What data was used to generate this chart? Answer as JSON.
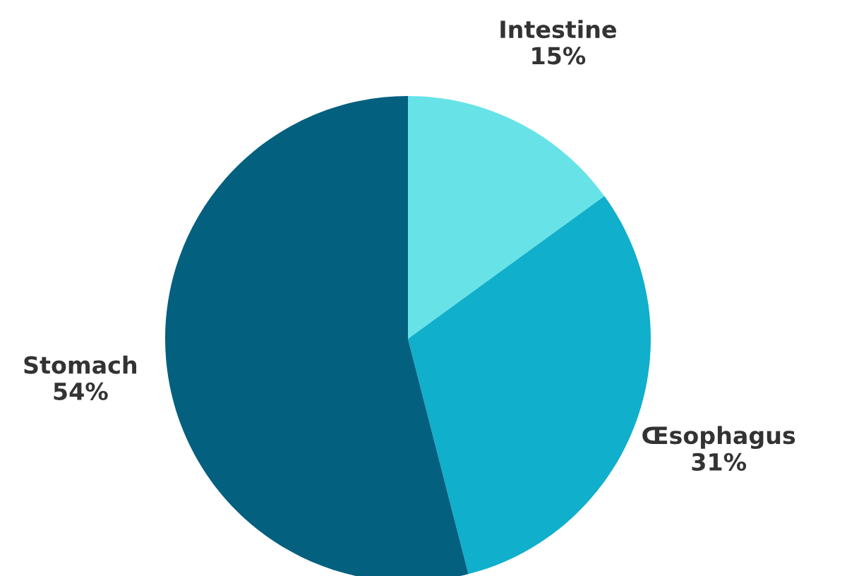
{
  "chart_data": {
    "type": "pie",
    "categories": [
      "Intestine",
      "Œsophagus",
      "Stomach"
    ],
    "values": [
      15,
      31,
      54
    ],
    "value_labels": [
      "15%",
      "31%",
      "54%"
    ],
    "colors": [
      "#67e3e8",
      "#10afcb",
      "#03607f"
    ],
    "legend": false
  }
}
